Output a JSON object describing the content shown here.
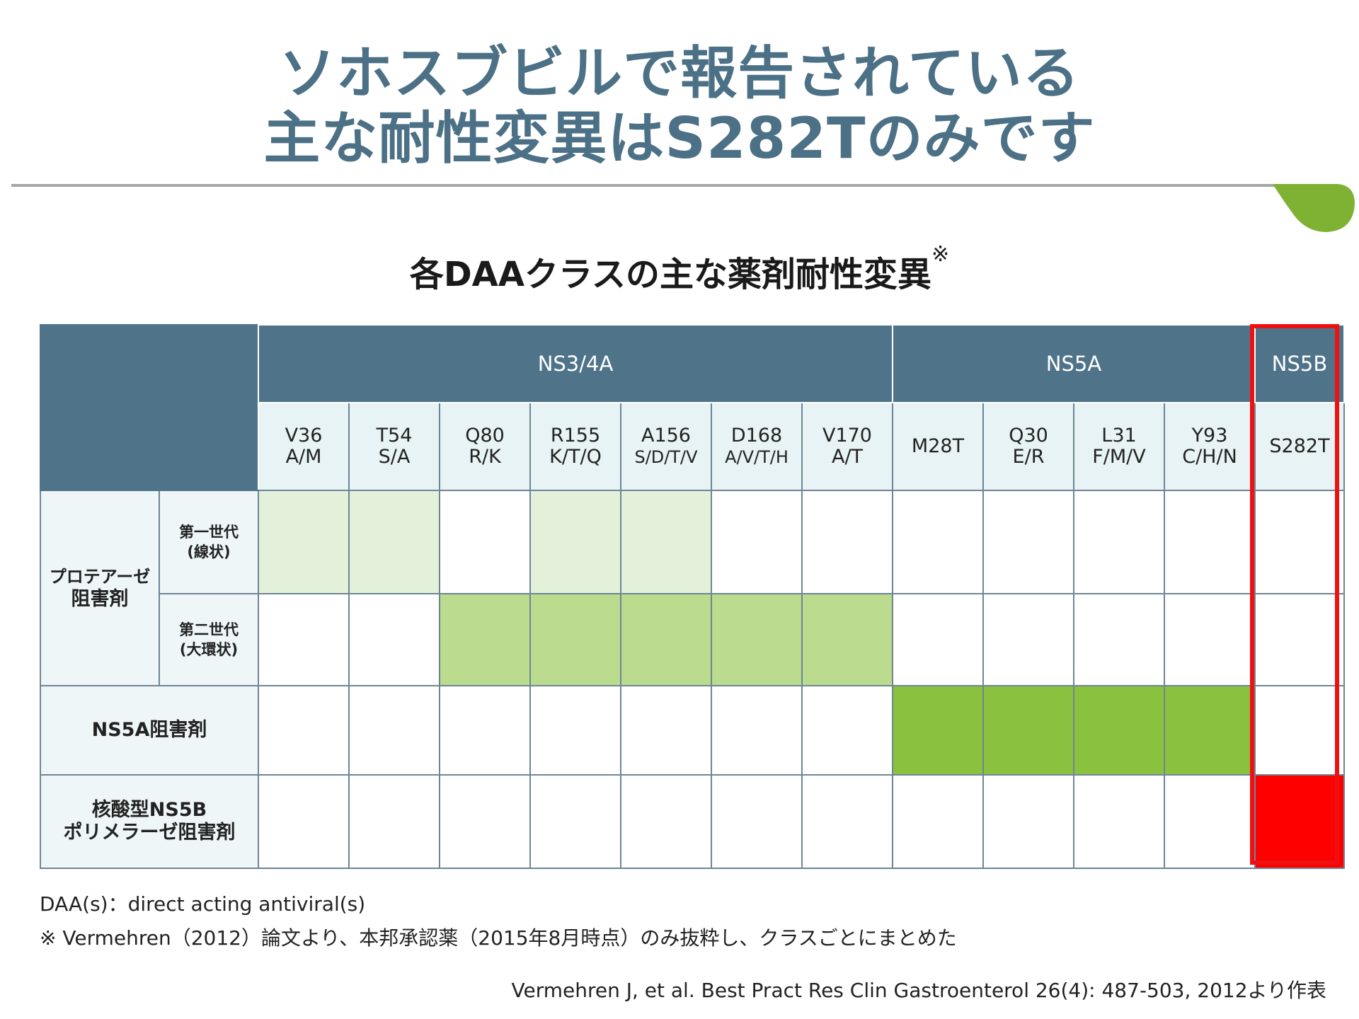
{
  "title_lines": [
    "ソホスブビルで報告されている",
    "主な耐性変異はS282Tのみです"
  ],
  "subtitle": "各DAAクラスの主な薬剤耐性変異",
  "subtitle_mark": "※",
  "table": {
    "groups": [
      "NS3/4A",
      "NS5A",
      "NS5B"
    ],
    "columns": [
      {
        "l1": "V36",
        "l2": "A/M"
      },
      {
        "l1": "T54",
        "l2": "S/A"
      },
      {
        "l1": "Q80",
        "l2": "R/K"
      },
      {
        "l1": "R155",
        "l2": "K/T/Q"
      },
      {
        "l1": "A156",
        "l2": "S/D/T/V"
      },
      {
        "l1": "D168",
        "l2": "A/V/T/H"
      },
      {
        "l1": "V170",
        "l2": "A/T"
      },
      {
        "l1": "M28T",
        "l2": ""
      },
      {
        "l1": "Q30",
        "l2": "E/R"
      },
      {
        "l1": "L31",
        "l2": "F/M/V"
      },
      {
        "l1": "Y93",
        "l2": "C/H/N"
      },
      {
        "l1": "S282T",
        "l2": ""
      }
    ],
    "row_labels": {
      "protease": [
        "プロテアーゼ",
        "阻害剤"
      ],
      "gen1": [
        "第一世代",
        "(線状)"
      ],
      "gen2": [
        "第二世代",
        "(大環状)"
      ],
      "ns5a": "NS5A阻害剤",
      "ns5b": [
        "核酸型NS5B",
        "ポリメラーゼ阻害剤"
      ]
    },
    "cell_colors": {
      "light": "#e4f1da",
      "medium": "#bbdb8e",
      "strong": "#8ac23f",
      "highlight": "#ff0000"
    },
    "rows": [
      [
        "light",
        "light",
        "none",
        "light",
        "light",
        "none",
        "none",
        "none",
        "none",
        "none",
        "none",
        "none"
      ],
      [
        "none",
        "none",
        "medium",
        "medium",
        "medium",
        "medium",
        "medium",
        "none",
        "none",
        "none",
        "none",
        "none"
      ],
      [
        "none",
        "none",
        "none",
        "none",
        "none",
        "none",
        "none",
        "strong",
        "strong",
        "strong",
        "strong",
        "none"
      ],
      [
        "none",
        "none",
        "none",
        "none",
        "none",
        "none",
        "none",
        "none",
        "none",
        "none",
        "none",
        "highlight"
      ]
    ]
  },
  "notes": {
    "daa": "DAA(s)：direct acting antiviral(s)",
    "source": "※ Vermehren（2012）論文より、本邦承認薬（2015年8月時点）のみ抜粋し、クラスごとにまとめた"
  },
  "citation": "Vermehren J, et al. Best Pract Res Clin Gastroenterol 26(4): 487-503, 2012より作表",
  "colors": {
    "title": "#4c7186",
    "header": "#4f7489",
    "subheader": "#e7f3f4",
    "accent_leaf": "#7fb233",
    "frame": "#ee1111"
  }
}
